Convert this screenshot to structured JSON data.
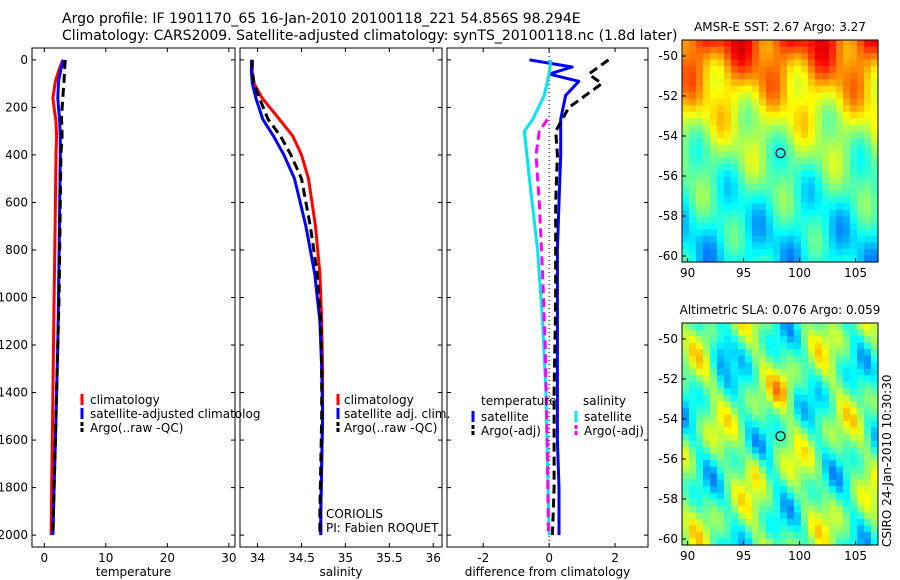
{
  "titles": {
    "line1": "Argo profile: IF 1901170_65 16-Jan-2010 20100118_221 54.856S 98.294E",
    "line2": "Climatology: CARS2009. Satellite-adjusted climatology: synTS_20100118.nc (1.8d later)"
  },
  "signature": "CSIRO 24-Jan-2010 10:30:30",
  "colors": {
    "climatology": "#ff0000",
    "satellite": "#0000ff",
    "argo": "#000000",
    "satellite_salinity": "#00e5ee",
    "argo_salinity": "#ff00ff"
  },
  "chart_data": [
    {
      "type": "line",
      "xlabel": "temperature",
      "ylabel": "",
      "xlim": [
        -2,
        31
      ],
      "ylim": [
        2050,
        -50
      ],
      "y_reversed": true,
      "x_ticks": [
        "0",
        "10",
        "20",
        "30"
      ],
      "x_tick_values": [
        0,
        10,
        20,
        30
      ],
      "y_ticks": [
        "0",
        "200",
        "400",
        "600",
        "800",
        "1000",
        "1200",
        "1400",
        "1600",
        "1800",
        "2000"
      ],
      "y_tick_values": [
        0,
        200,
        400,
        600,
        800,
        1000,
        1200,
        1400,
        1600,
        1800,
        2000
      ],
      "legend": [
        "climatology",
        "satellite-adjusted climatolog",
        "Argo(..raw -QC)"
      ],
      "legend_position": "lower-right",
      "series": [
        {
          "name": "climatology",
          "color": "#ff0000",
          "dash": "solid",
          "x": [
            3.0,
            2.4,
            1.8,
            1.4,
            1.6,
            1.9,
            2.0,
            1.9,
            1.8,
            1.7,
            1.6,
            1.5,
            1.4,
            1.3,
            1.2,
            1.1
          ],
          "y": [
            0,
            40,
            90,
            160,
            200,
            260,
            320,
            400,
            600,
            800,
            1000,
            1200,
            1400,
            1600,
            1800,
            2000
          ]
        },
        {
          "name": "satellite-adjusted climatolog",
          "color": "#0000ff",
          "dash": "solid",
          "x": [
            3.1,
            2.7,
            2.3,
            2.2,
            2.3,
            2.5,
            2.6,
            2.6,
            2.5,
            2.4,
            2.3,
            2.2,
            2.0,
            1.8,
            1.6,
            1.4
          ],
          "y": [
            0,
            40,
            90,
            160,
            200,
            260,
            320,
            400,
            600,
            800,
            1000,
            1200,
            1400,
            1600,
            1800,
            2000
          ]
        },
        {
          "name": "Argo(..raw -QC)",
          "color": "#000000",
          "dash": "dashed",
          "x": [
            3.4,
            3.3,
            3.2,
            3.0,
            2.8,
            2.9,
            2.7,
            2.6,
            2.5,
            2.4,
            2.2,
            2.0,
            1.8,
            1.6,
            1.4
          ],
          "y": [
            0,
            40,
            90,
            160,
            240,
            320,
            400,
            600,
            800,
            1000,
            1200,
            1400,
            1600,
            1800,
            2000
          ]
        }
      ]
    },
    {
      "type": "line",
      "xlabel": "salinity",
      "ylabel": "",
      "xlim": [
        33.8,
        36.1
      ],
      "ylim": [
        2050,
        -50
      ],
      "y_reversed": true,
      "x_ticks": [
        "34",
        "34.5",
        "35",
        "35.5",
        "36"
      ],
      "x_tick_values": [
        34,
        34.5,
        35,
        35.5,
        36
      ],
      "legend": [
        "climatology",
        "satellite adj. clim.",
        "Argo(..raw -QC)"
      ],
      "legend_position": "lower-right",
      "annotations": [
        "CORIOLIS",
        "PI: Fabien ROQUET"
      ],
      "series": [
        {
          "name": "climatology",
          "color": "#ff0000",
          "dash": "solid",
          "x": [
            33.93,
            33.94,
            33.96,
            34.05,
            34.25,
            34.4,
            34.5,
            34.58,
            34.66,
            34.71,
            34.73,
            34.74,
            34.74,
            34.73,
            34.72,
            34.72
          ],
          "y": [
            0,
            50,
            100,
            160,
            250,
            320,
            400,
            500,
            700,
            900,
            1100,
            1300,
            1500,
            1700,
            1900,
            2000
          ]
        },
        {
          "name": "satellite adj. clim.",
          "color": "#0000ff",
          "dash": "solid",
          "x": [
            33.93,
            33.93,
            33.94,
            33.98,
            34.06,
            34.18,
            34.3,
            34.42,
            34.55,
            34.65,
            34.71,
            34.73,
            34.74,
            34.73,
            34.72,
            34.72
          ],
          "y": [
            0,
            50,
            100,
            160,
            250,
            320,
            400,
            500,
            700,
            900,
            1100,
            1300,
            1500,
            1700,
            1900,
            2000
          ]
        },
        {
          "name": "Argo(..raw -QC)",
          "color": "#000000",
          "dash": "dashed",
          "x": [
            33.94,
            33.94,
            33.96,
            34.02,
            34.12,
            34.26,
            34.38,
            34.5,
            34.6,
            34.68,
            34.72,
            34.73,
            34.73,
            34.72,
            34.71,
            34.71
          ],
          "y": [
            0,
            50,
            100,
            160,
            250,
            320,
            400,
            500,
            700,
            900,
            1100,
            1300,
            1500,
            1700,
            1900,
            2000
          ]
        }
      ]
    },
    {
      "type": "line",
      "xlabel": "difference from climatology",
      "ylabel": "",
      "xlim": [
        -3.1,
        3.0
      ],
      "ylim": [
        2050,
        -50
      ],
      "y_reversed": true,
      "x_ticks": [
        "-2",
        "0",
        "2"
      ],
      "x_tick_values": [
        -2,
        0,
        2
      ],
      "zero_line": true,
      "legend_headers": [
        "temperature",
        "salinity"
      ],
      "legend": [
        "satellite",
        "Argo(-adj)",
        "satellite",
        "Argo(-adj)"
      ],
      "legend_position": "lower-center",
      "series": [
        {
          "name": "satellite",
          "group": "temperature",
          "color": "#0000ff",
          "dash": "solid",
          "x": [
            -0.6,
            0.7,
            0.0,
            0.9,
            0.5,
            0.35,
            0.35,
            0.3,
            0.25,
            0.25,
            0.25,
            0.25,
            0.3,
            0.3
          ],
          "y": [
            0,
            30,
            60,
            90,
            150,
            250,
            400,
            600,
            800,
            1000,
            1300,
            1600,
            1800,
            2000
          ]
        },
        {
          "name": "Argo(-adj)",
          "group": "temperature",
          "color": "#000000",
          "dash": "dashed",
          "x": [
            1.8,
            1.2,
            1.6,
            0.6,
            0.2,
            0.25,
            0.2,
            0.2,
            0.15,
            0.15,
            0.1
          ],
          "y": [
            0,
            60,
            100,
            200,
            300,
            400,
            600,
            1000,
            1400,
            1800,
            2000
          ]
        },
        {
          "name": "satellite",
          "group": "salinity",
          "color": "#00e5ee",
          "dash": "solid",
          "x": [
            0.05,
            0.0,
            -0.15,
            -0.5,
            -0.75,
            -0.6,
            -0.35,
            -0.2,
            -0.1,
            -0.05,
            0.0
          ],
          "y": [
            0,
            60,
            150,
            250,
            300,
            500,
            800,
            1100,
            1400,
            1700,
            2000
          ]
        },
        {
          "name": "Argo(-adj)",
          "group": "salinity",
          "color": "#ff00ff",
          "dash": "dashed",
          "x": [
            -0.05,
            -0.3,
            -0.4,
            -0.3,
            -0.2,
            -0.12,
            -0.06,
            -0.02
          ],
          "y": [
            250,
            300,
            400,
            600,
            900,
            1200,
            1600,
            2000
          ]
        }
      ]
    },
    {
      "type": "heatmap",
      "title": "AMSR-E SST: 2.67 Argo: 3.27",
      "xlim": [
        89.5,
        107
      ],
      "ylim": [
        -60.3,
        -49.2
      ],
      "x_ticks": [
        "90",
        "95",
        "100",
        "105"
      ],
      "x_tick_values": [
        90,
        95,
        100,
        105
      ],
      "y_ticks": [
        "-50",
        "-52",
        "-54",
        "-56",
        "-58",
        "-60"
      ],
      "y_tick_values": [
        -50,
        -52,
        -54,
        -56,
        -58,
        -60
      ],
      "marker": {
        "x": 98.294,
        "y": -54.856
      },
      "colormap": "jet"
    },
    {
      "type": "heatmap",
      "title": "Altimetric SLA: 0.076 Argo: 0.059",
      "xlim": [
        89.5,
        107
      ],
      "ylim": [
        -60.3,
        -49.2
      ],
      "x_ticks": [
        "90",
        "95",
        "100",
        "105"
      ],
      "x_tick_values": [
        90,
        95,
        100,
        105
      ],
      "y_ticks": [
        "-50",
        "-52",
        "-54",
        "-56",
        "-58",
        "-60"
      ],
      "y_tick_values": [
        -50,
        -52,
        -54,
        -56,
        -58,
        -60
      ],
      "marker": {
        "x": 98.294,
        "y": -54.856
      },
      "colormap": "jet"
    }
  ]
}
